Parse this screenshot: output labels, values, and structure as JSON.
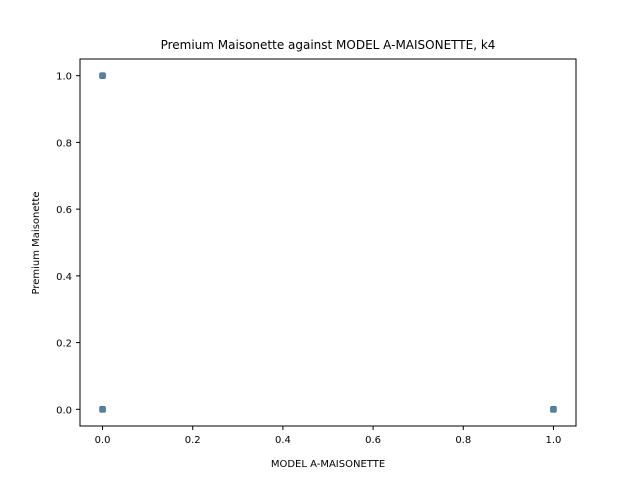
{
  "chart_data": {
    "type": "scatter",
    "title": "Premium Maisonette against MODEL A-MAISONETTE, k4",
    "xlabel": "MODEL A-MAISONETTE",
    "ylabel": "Premium Maisonette",
    "xlim": [
      -0.05,
      1.05
    ],
    "ylim": [
      -0.05,
      1.05
    ],
    "xticks": [
      "0.0",
      "0.2",
      "0.4",
      "0.6",
      "0.8",
      "1.0"
    ],
    "yticks": [
      "0.0",
      "0.2",
      "0.4",
      "0.6",
      "0.8",
      "1.0"
    ],
    "grid": false,
    "series": [
      {
        "points": [
          {
            "x": 0,
            "y": 1
          },
          {
            "x": 0,
            "y": 0
          },
          {
            "x": 1,
            "y": 0
          }
        ]
      }
    ]
  },
  "colors": {
    "marker": "#3b6b8f",
    "axes": "#000000",
    "background": "#ffffff"
  }
}
